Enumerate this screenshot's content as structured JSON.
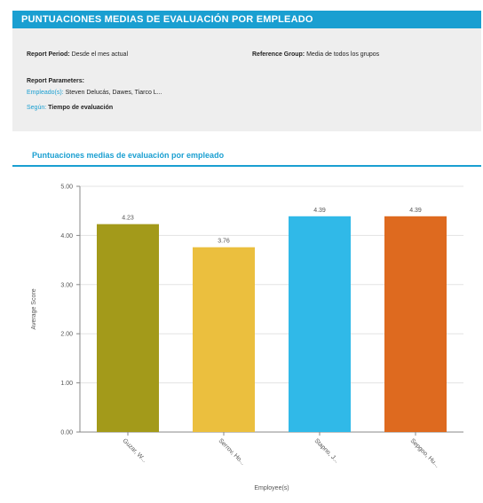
{
  "header": {
    "title": "PUNTUACIONES MEDIAS DE EVALUACIÓN POR EMPLEADO"
  },
  "params": {
    "period_label": "Report Period:",
    "period_value": "Desde el mes actual",
    "ref_label": "Reference Group:",
    "ref_value": "Media de todos los grupos",
    "section_title": "Report Parameters:",
    "employees_label": "Empleado(s):",
    "employees_value": "Steven Delucás, Dawes, Tiarco L...",
    "segment_label": "Según:",
    "segment_value": "Tiempo de evaluación"
  },
  "chart_data": {
    "type": "bar",
    "title": "Puntuaciones medias de evaluación por empleado",
    "xlabel": "Employee(s)",
    "ylabel": "Average Score",
    "ylim": [
      0,
      5
    ],
    "yticks": [
      "0.00",
      "1.00",
      "2.00",
      "3.00",
      "4.00",
      "5.00"
    ],
    "categories": [
      "Guzar, W...",
      "Serrov, Ho...",
      "Stapno, J...",
      "Sepgoo, Hu..."
    ],
    "values": [
      4.23,
      3.76,
      4.39,
      4.39
    ],
    "value_labels": [
      "4.23",
      "3.76",
      "4.39",
      "4.39"
    ],
    "colors": [
      "#a39a1a",
      "#ebbf3e",
      "#30b9e8",
      "#de6a1f"
    ],
    "grid": true
  }
}
